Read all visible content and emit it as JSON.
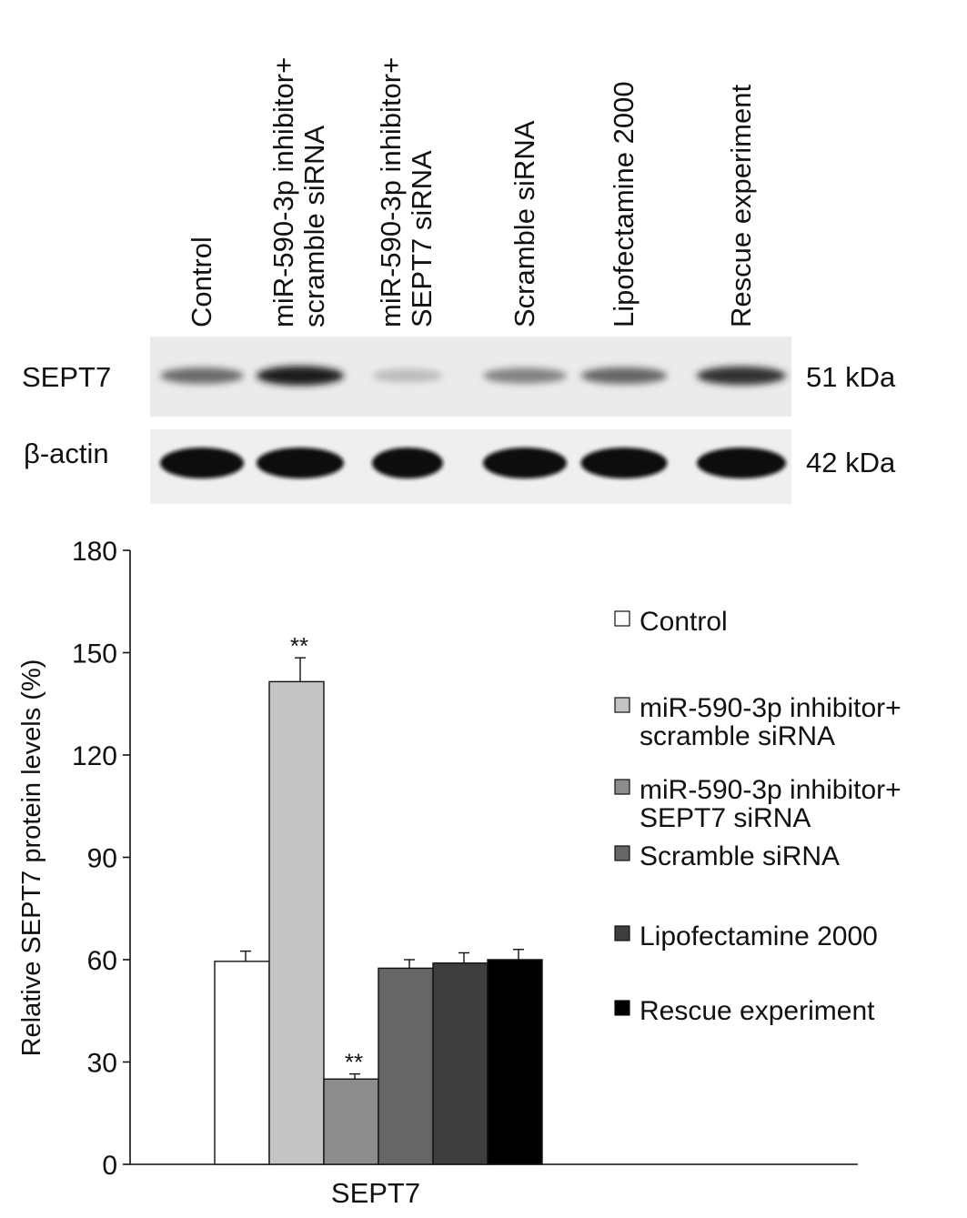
{
  "blot": {
    "lane_labels": [
      "Control",
      "miR-590-3p inhibitor+ scramble siRNA",
      "miR-590-3p inhibitor+ SEPT7 siRNA",
      "Scramble siRNA",
      "Lipofectamine 2000",
      "Rescue experiment"
    ],
    "rows": [
      {
        "label": "SEPT7",
        "size": "51 kDa",
        "band_intensity": [
          0.55,
          0.92,
          0.18,
          0.45,
          0.58,
          0.82
        ]
      },
      {
        "label": "β-actin",
        "size": "42 kDa",
        "band_intensity": [
          1,
          1,
          1,
          1,
          1,
          1
        ]
      }
    ]
  },
  "chart_data": {
    "type": "bar",
    "categories": [
      "SEPT7"
    ],
    "series": [
      {
        "name": "Control",
        "values": [
          59.5
        ],
        "error": [
          3
        ],
        "significance": "",
        "color": "#ffffff"
      },
      {
        "name": "miR-590-3p inhibitor+ scramble siRNA",
        "values": [
          141.5
        ],
        "error": [
          7
        ],
        "significance": "**",
        "color": "#c4c4c4"
      },
      {
        "name": "miR-590-3p inhibitor+ SEPT7 siRNA",
        "values": [
          25
        ],
        "error": [
          1.5
        ],
        "significance": "**",
        "color": "#8c8c8c"
      },
      {
        "name": "Scramble siRNA",
        "values": [
          57.5
        ],
        "error": [
          2.5
        ],
        "significance": "",
        "color": "#666666"
      },
      {
        "name": "Lipofectamine 2000",
        "values": [
          59
        ],
        "error": [
          3
        ],
        "significance": "",
        "color": "#3e3e3e"
      },
      {
        "name": "Rescue experiment",
        "values": [
          60
        ],
        "error": [
          3
        ],
        "significance": "",
        "color": "#000000"
      }
    ],
    "ylabel": "Relative SEPT7 protein levels (%)",
    "xlabel": "",
    "ylim": [
      0,
      180
    ],
    "yticks": [
      0,
      30,
      60,
      90,
      120,
      150,
      180
    ],
    "grid": false,
    "legend_position": "right"
  }
}
